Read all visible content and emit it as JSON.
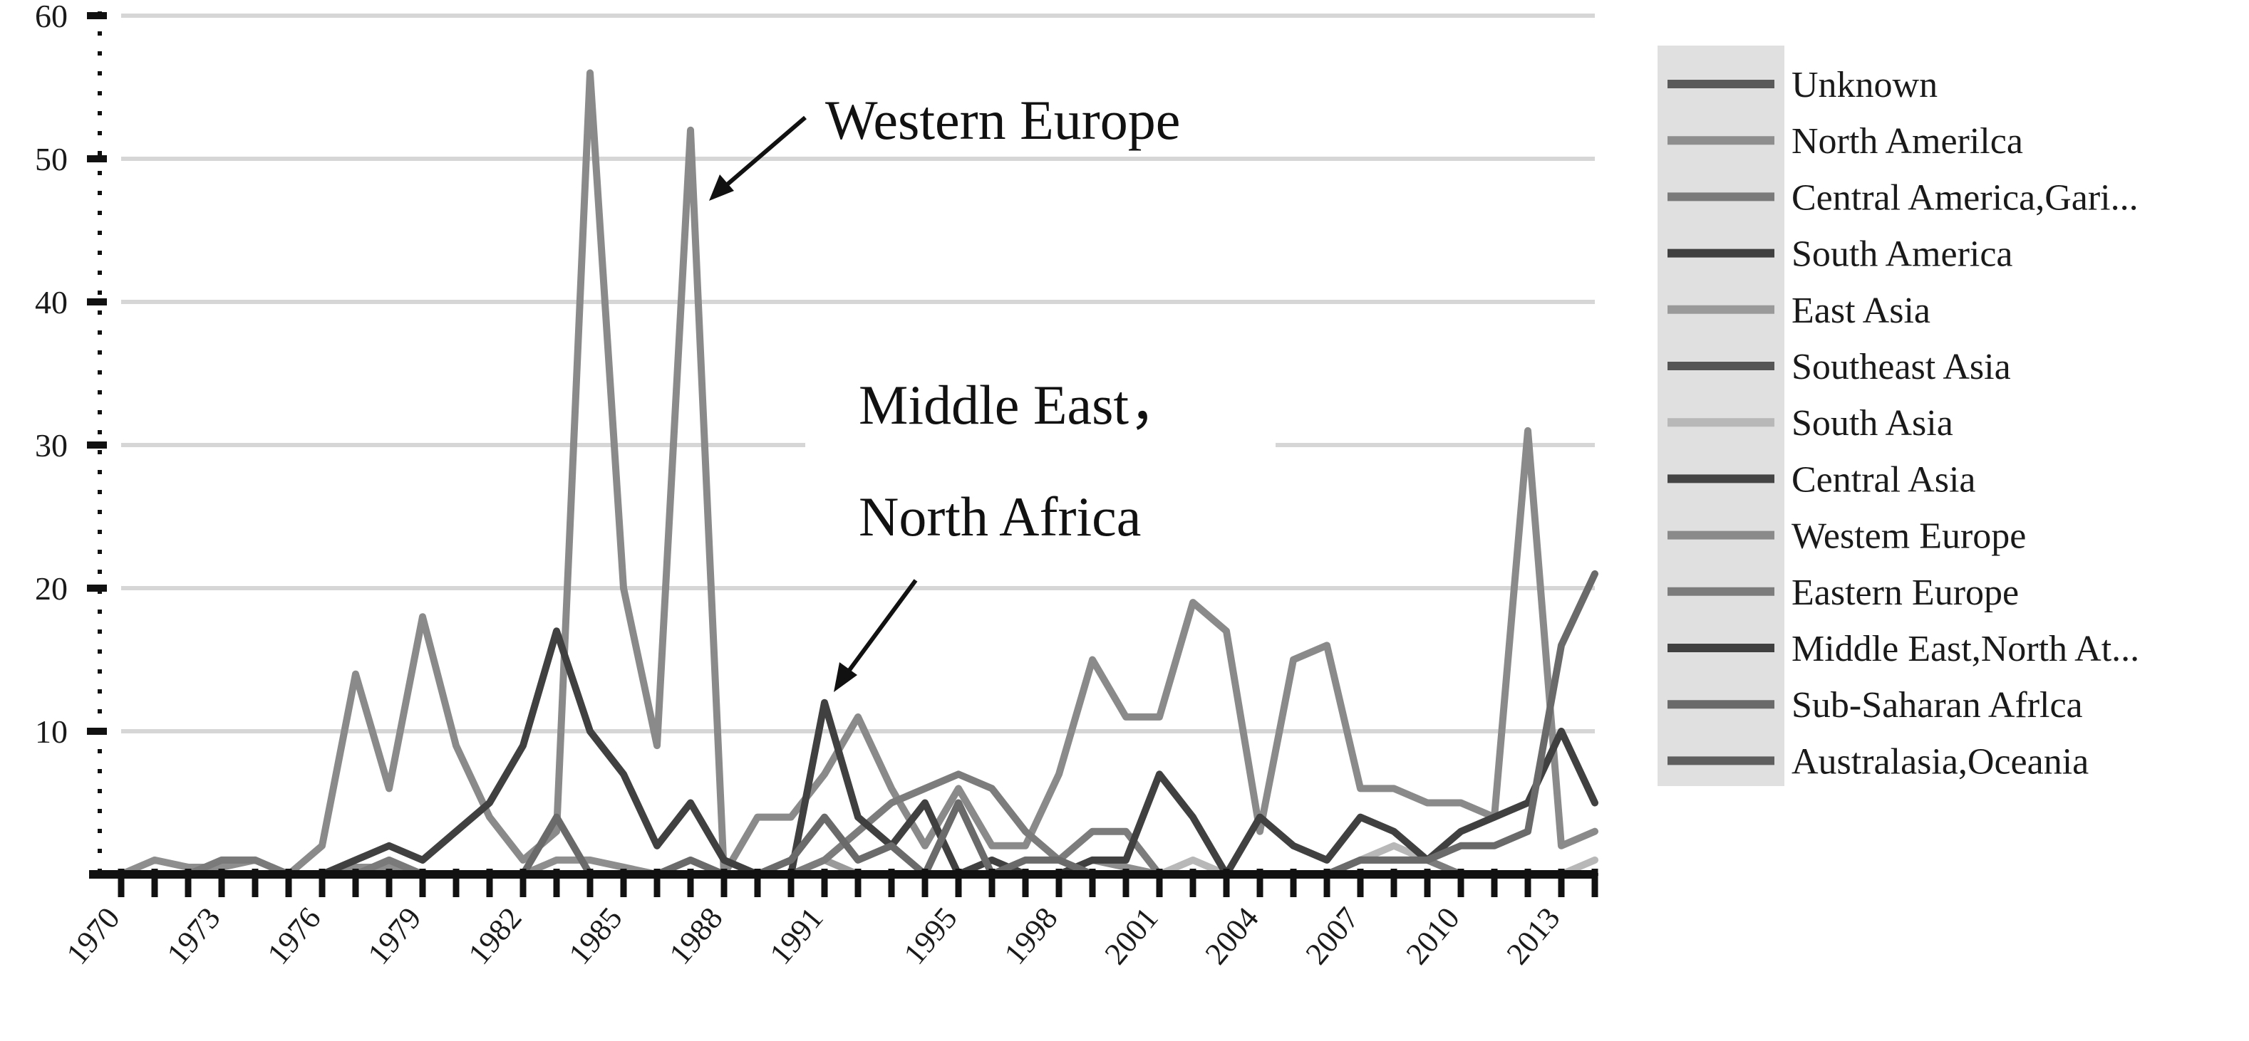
{
  "chart_data": {
    "type": "line",
    "x": [
      1970,
      1971,
      1972,
      1973,
      1974,
      1975,
      1976,
      1977,
      1978,
      1979,
      1980,
      1981,
      1982,
      1983,
      1984,
      1985,
      1986,
      1987,
      1988,
      1989,
      1990,
      1991,
      1992,
      1993,
      1994,
      1995,
      1996,
      1997,
      1998,
      1999,
      2000,
      2001,
      2002,
      2003,
      2004,
      2005,
      2006,
      2007,
      2008,
      2009,
      2010,
      2011,
      2012,
      2013,
      2014
    ],
    "xticks": [
      "1970",
      "1973",
      "1976",
      "1979",
      "1982",
      "1985",
      "1988",
      "1991",
      "1995",
      "1998",
      "2001",
      "2004",
      "2007",
      "2010",
      "2013"
    ],
    "ylim": [
      0,
      60
    ],
    "yticks": [
      "10",
      "20",
      "30",
      "40",
      "50",
      "60"
    ],
    "grid": true,
    "legend_position": "right",
    "annotations": [
      {
        "text": "Western Europe"
      },
      {
        "text": "Middle East，"
      },
      {
        "text": "North Africa"
      }
    ],
    "series": [
      {
        "name": "Unknown",
        "color": "#5a5a5a",
        "values": [
          0,
          0,
          0,
          0,
          0,
          0,
          0,
          0,
          0,
          0,
          0,
          0,
          0,
          0,
          0,
          0,
          0,
          0,
          0,
          0,
          0,
          0,
          0,
          0,
          0,
          0,
          0,
          0,
          0,
          0,
          0,
          0,
          0,
          0,
          0,
          0,
          0,
          0,
          0,
          0,
          0,
          0,
          0,
          0,
          0
        ]
      },
      {
        "name": "North Amerilca",
        "color": "#8e8e8e",
        "values": [
          0,
          1,
          0.5,
          0.5,
          1,
          0,
          0,
          0.5,
          0.5,
          0,
          0,
          0,
          0,
          1,
          1,
          0.5,
          0,
          0,
          0,
          0,
          0,
          0,
          0,
          0,
          0,
          0,
          0,
          0,
          0,
          1,
          0.5,
          0,
          0,
          0,
          0,
          0,
          0,
          0,
          0,
          0,
          0,
          0,
          0,
          0,
          0
        ]
      },
      {
        "name": "Central America,Gari...",
        "color": "#7a7a7a",
        "values": [
          0,
          0,
          0,
          1,
          1,
          0,
          0,
          0,
          1,
          0,
          0,
          0,
          0,
          0,
          0,
          0,
          0,
          0,
          0,
          0,
          0,
          0,
          0,
          0,
          0,
          0,
          0,
          0,
          0,
          0,
          0,
          0,
          0,
          0,
          0,
          0,
          0,
          0,
          0,
          0,
          0,
          0,
          0,
          0,
          0
        ]
      },
      {
        "name": "South America",
        "color": "#3f3f3f",
        "values": [
          0,
          0,
          0,
          0,
          0,
          0,
          0,
          0,
          0,
          0,
          0,
          0,
          0,
          0,
          0,
          0,
          0,
          0,
          0,
          0,
          0,
          0,
          0,
          0,
          0,
          0,
          0,
          0,
          0,
          0,
          0,
          0,
          0,
          0,
          0,
          0,
          0,
          0,
          0,
          0,
          0,
          0,
          0,
          0,
          0
        ]
      },
      {
        "name": "East Asia",
        "color": "#9a9a9a",
        "values": [
          0,
          0,
          0,
          0,
          0,
          0,
          0,
          0,
          0,
          0,
          0,
          0,
          0,
          0,
          0,
          0,
          0,
          0,
          0,
          0,
          0,
          1,
          0,
          0,
          0,
          0,
          0,
          0,
          0,
          0,
          0,
          0,
          0,
          0,
          0,
          0,
          0,
          0,
          0,
          0,
          0,
          0,
          0,
          0,
          0
        ]
      },
      {
        "name": "Southeast Asia",
        "color": "#555555",
        "values": [
          0,
          0,
          0,
          0,
          0,
          0,
          0,
          0,
          0,
          0,
          0,
          0,
          0,
          0,
          0,
          0,
          0,
          0,
          0,
          0,
          0,
          0,
          0,
          0,
          0,
          0,
          0,
          0,
          0,
          0,
          0,
          0,
          0,
          0,
          0,
          0,
          0,
          0,
          0,
          0,
          0,
          0,
          0,
          0,
          0
        ]
      },
      {
        "name": "South Asia",
        "color": "#b8b8b8",
        "values": [
          0,
          0,
          0,
          0,
          0,
          0,
          0,
          0,
          0,
          0,
          0,
          0,
          0,
          0,
          0,
          0,
          0,
          0,
          0,
          0,
          0,
          0,
          0,
          0,
          0,
          0,
          0,
          0,
          0,
          0,
          0,
          0,
          1,
          0,
          0,
          0,
          0,
          1,
          2,
          1,
          0,
          0,
          0,
          0,
          1
        ]
      },
      {
        "name": "Central Asia",
        "color": "#444444",
        "values": [
          0,
          0,
          0,
          0,
          0,
          0,
          0,
          0,
          0,
          0,
          0,
          0,
          0,
          0,
          0,
          0,
          0,
          0,
          0,
          0,
          0,
          0,
          0,
          0,
          0,
          0,
          0,
          0,
          0,
          0,
          0,
          0,
          0,
          0,
          0,
          0,
          0,
          0,
          0,
          0,
          0,
          0,
          0,
          0,
          0
        ]
      },
      {
        "name": "Westem Europe",
        "color": "#8a8a8a",
        "values": [
          0,
          0,
          0,
          0,
          0,
          0,
          2,
          14,
          6,
          18,
          9,
          4,
          1,
          3,
          56,
          20,
          9,
          52,
          0,
          4,
          4,
          7,
          11,
          6,
          2,
          6,
          2,
          2,
          7,
          15,
          11,
          11,
          19,
          17,
          3,
          15,
          16,
          6,
          6,
          5,
          5,
          4,
          31,
          2,
          3
        ]
      },
      {
        "name": "Eastern Europe",
        "color": "#7c7c7c",
        "values": [
          0,
          0,
          0,
          0,
          0,
          0,
          0,
          0,
          0,
          0,
          0,
          0,
          0,
          0,
          0,
          0,
          0,
          0,
          0,
          0,
          0,
          1,
          3,
          5,
          6,
          7,
          6,
          3,
          1,
          3,
          3,
          0,
          0,
          0,
          0,
          0,
          0,
          1,
          1,
          1,
          0,
          0,
          0,
          0,
          0
        ]
      },
      {
        "name": "Middle East,North At...",
        "color": "#404040",
        "values": [
          0,
          0,
          0,
          0,
          0,
          0,
          0,
          1,
          2,
          1,
          3,
          5,
          9,
          17,
          10,
          7,
          2,
          5,
          1,
          0,
          0,
          12,
          4,
          2,
          5,
          0,
          1,
          0,
          0,
          1,
          1,
          7,
          4,
          0,
          4,
          2,
          1,
          4,
          3,
          1,
          3,
          4,
          5,
          10,
          5
        ]
      },
      {
        "name": "Sub-Saharan Afrlca",
        "color": "#6a6a6a",
        "values": [
          0,
          0,
          0,
          0,
          0,
          0,
          0,
          0,
          0,
          0,
          0,
          0,
          0,
          4,
          0,
          0,
          0,
          1,
          0,
          0,
          1,
          4,
          1,
          2,
          0,
          5,
          0,
          1,
          1,
          0,
          0,
          0,
          0,
          0,
          0,
          0,
          0,
          1,
          1,
          1,
          2,
          2,
          3,
          16,
          21
        ]
      },
      {
        "name": "Australasia,Oceania",
        "color": "#5f5f5f",
        "values": [
          0,
          0,
          0,
          0,
          0,
          0,
          0,
          0,
          0,
          0,
          0,
          0,
          0,
          0,
          0,
          0,
          0,
          0,
          0,
          0,
          0,
          0,
          0,
          0,
          0,
          0,
          0,
          0,
          0,
          0,
          0,
          0,
          0,
          0,
          0,
          0,
          0,
          0,
          0,
          0,
          0,
          0,
          0,
          0,
          0
        ]
      }
    ]
  }
}
